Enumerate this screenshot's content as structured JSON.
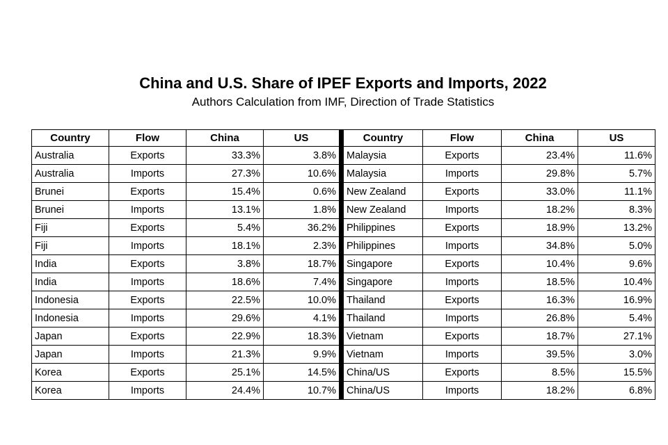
{
  "header": {
    "title": "China and U.S. Share of IPEF Exports and Imports, 2022",
    "subtitle": "Authors Calculation from IMF, Direction of Trade Statistics"
  },
  "table": {
    "headers": [
      "Country",
      "Flow",
      "China",
      "US",
      "Country",
      "Flow",
      "China",
      "US"
    ],
    "rows": [
      [
        "Australia",
        "Exports",
        "33.3%",
        "3.8%",
        "Malaysia",
        "Exports",
        "23.4%",
        "11.6%"
      ],
      [
        "Australia",
        "Imports",
        "27.3%",
        "10.6%",
        "Malaysia",
        "Imports",
        "29.8%",
        "5.7%"
      ],
      [
        "Brunei",
        "Exports",
        "15.4%",
        "0.6%",
        "New Zealand",
        "Exports",
        "33.0%",
        "11.1%"
      ],
      [
        "Brunei",
        "Imports",
        "13.1%",
        "1.8%",
        "New Zealand",
        "Imports",
        "18.2%",
        "8.3%"
      ],
      [
        "Fiji",
        "Exports",
        "5.4%",
        "36.2%",
        "Philippines",
        "Exports",
        "18.9%",
        "13.2%"
      ],
      [
        "Fiji",
        "Imports",
        "18.1%",
        "2.3%",
        "Philippines",
        "Imports",
        "34.8%",
        "5.0%"
      ],
      [
        "India",
        "Exports",
        "3.8%",
        "18.7%",
        "Singapore",
        "Exports",
        "10.4%",
        "9.6%"
      ],
      [
        "India",
        "Imports",
        "18.6%",
        "7.4%",
        "Singapore",
        "Imports",
        "18.5%",
        "10.4%"
      ],
      [
        "Indonesia",
        "Exports",
        "22.5%",
        "10.0%",
        "Thailand",
        "Exports",
        "16.3%",
        "16.9%"
      ],
      [
        "Indonesia",
        "Imports",
        "29.6%",
        "4.1%",
        "Thailand",
        "Imports",
        "26.8%",
        "5.4%"
      ],
      [
        "Japan",
        "Exports",
        "22.9%",
        "18.3%",
        "Vietnam",
        "Exports",
        "18.7%",
        "27.1%"
      ],
      [
        "Japan",
        "Imports",
        "21.3%",
        "9.9%",
        "Vietnam",
        "Imports",
        "39.5%",
        "3.0%"
      ],
      [
        "Korea",
        "Exports",
        "25.1%",
        "14.5%",
        "China/US",
        "Exports",
        "8.5%",
        "15.5%"
      ],
      [
        "Korea",
        "Imports",
        "24.4%",
        "10.7%",
        "China/US",
        "Imports",
        "18.2%",
        "6.8%"
      ]
    ]
  }
}
